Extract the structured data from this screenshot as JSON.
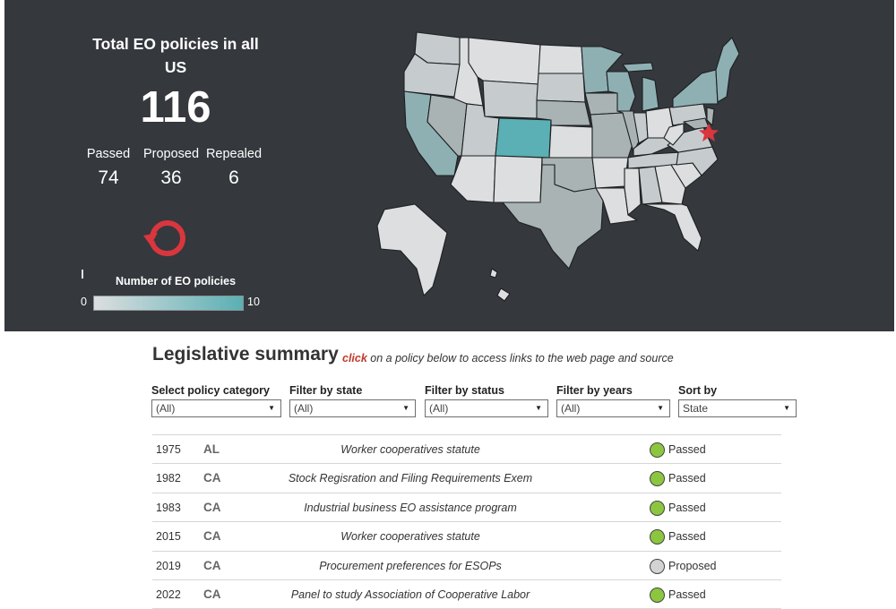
{
  "header": {
    "title": "Total EO policies in all US",
    "total": "116"
  },
  "stats": [
    {
      "label": "Passed",
      "value": "74"
    },
    {
      "label": "Proposed",
      "value": "36"
    },
    {
      "label": "Repealed",
      "value": "6"
    }
  ],
  "legend": {
    "title": "Number of EO policies",
    "min": "0",
    "max": "10"
  },
  "colors": {
    "background": "#35383d",
    "low": "#dcdedf",
    "high": "#5ab0b4",
    "passed": "#8cc63f",
    "proposed": "#d3d3d3",
    "marker": "#d9363e"
  },
  "summary": {
    "title": "Legislative summary",
    "click": "click",
    "note": "on a policy below to access links to the web page and source"
  },
  "filters": [
    {
      "label": "Select policy category",
      "value": "(All)"
    },
    {
      "label": "Filter by state",
      "value": "(All)"
    },
    {
      "label": "Filter by status",
      "value": "(All)"
    },
    {
      "label": "Filter by years",
      "value": "(All)"
    },
    {
      "label": "Sort by",
      "value": "State"
    }
  ],
  "policies": [
    {
      "year": "1975",
      "state": "AL",
      "policy": "Worker cooperatives statute",
      "status": "Passed"
    },
    {
      "year": "1982",
      "state": "CA",
      "policy": "Stock Regisration and Filing Requirements Exem",
      "status": "Passed"
    },
    {
      "year": "1983",
      "state": "CA",
      "policy": "Industrial business EO assistance program",
      "status": "Passed"
    },
    {
      "year": "2015",
      "state": "CA",
      "policy": "Worker cooperatives statute",
      "status": "Passed"
    },
    {
      "year": "2019",
      "state": "CA",
      "policy": "Procurement preferences for ESOPs",
      "status": "Proposed"
    },
    {
      "year": "2022",
      "state": "CA",
      "policy": "Panel to study Association of Cooperative Labor",
      "status": "Passed"
    }
  ]
}
